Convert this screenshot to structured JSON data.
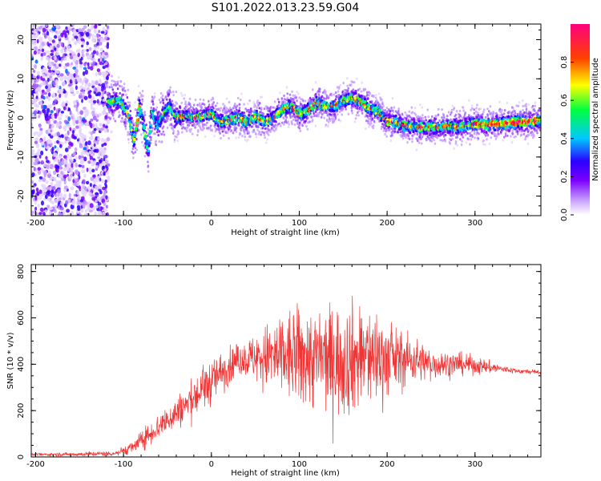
{
  "title": "S101.2022.013.23.59.G04",
  "chart_data": [
    {
      "type": "heatmap",
      "xlabel": "Height of straight line (km)",
      "ylabel": "Frequency (Hz)",
      "xlim": [
        -205,
        375
      ],
      "ylim": [
        -25,
        24
      ],
      "xticks": [
        -200,
        -100,
        0,
        100,
        200,
        300
      ],
      "yticks": [
        -20,
        -10,
        0,
        10,
        20
      ],
      "ridge": {
        "x": [
          -115,
          -105,
          -95,
          -88,
          -82,
          -78,
          -72,
          -68,
          -62,
          -55,
          -48,
          -40,
          -30,
          -20,
          -10,
          0,
          10,
          20,
          30,
          40,
          50,
          60,
          70,
          80,
          90,
          100,
          110,
          120,
          130,
          140,
          150,
          160,
          170,
          180,
          190,
          200,
          210,
          220,
          230,
          240,
          250,
          260,
          270,
          280,
          290,
          300,
          310,
          320,
          330,
          340,
          350,
          360,
          375
        ],
        "y": [
          4,
          4.5,
          1,
          -6,
          3,
          -1,
          -9,
          2,
          -2,
          1,
          3,
          0,
          0.5,
          0,
          0.5,
          1,
          -1,
          -0.5,
          0,
          -1,
          0.5,
          -1,
          0,
          2,
          3,
          1,
          2,
          4,
          3,
          3,
          4.5,
          5,
          4,
          2.5,
          1.5,
          -1,
          -1,
          -2,
          -2.2,
          -2.5,
          -2.3,
          -2.5,
          -2,
          -2.2,
          -2,
          -1.5,
          -1.8,
          -1.5,
          -1.5,
          -1.2,
          -1,
          -1,
          -0.5
        ]
      },
      "colorbar": {
        "label": "Normalized spectral amplitude",
        "range": [
          0,
          1
        ],
        "ticks": [
          0.0,
          0.2,
          0.4,
          0.6,
          0.8
        ],
        "colors": [
          "#ffffff",
          "#7b00ff",
          "#2c00ff",
          "#00c8ff",
          "#00ff40",
          "#ffff00",
          "#ff4000",
          "#ff0080"
        ]
      }
    },
    {
      "type": "line",
      "xlabel": "Height of straight line (km)",
      "ylabel": "SNR (10 * v/v)",
      "xlim": [
        -205,
        375
      ],
      "ylim": [
        0,
        830
      ],
      "xticks": [
        -200,
        -100,
        0,
        100,
        200,
        300
      ],
      "yticks": [
        0,
        200,
        400,
        600,
        800
      ],
      "color": "#ef3535",
      "envelope": {
        "x": [
          -205,
          -150,
          -110,
          -90,
          -70,
          -50,
          -30,
          -10,
          10,
          30,
          50,
          70,
          90,
          110,
          130,
          150,
          170,
          190,
          210,
          230,
          250,
          270,
          290,
          310,
          330,
          350,
          375
        ],
        "center": [
          10,
          12,
          15,
          40,
          100,
          160,
          220,
          290,
          360,
          420,
          430,
          430,
          430,
          430,
          420,
          420,
          430,
          430,
          420,
          420,
          400,
          400,
          400,
          390,
          380,
          370,
          365
        ],
        "spread": [
          5,
          8,
          10,
          25,
          45,
          55,
          70,
          90,
          80,
          60,
          90,
          150,
          190,
          200,
          200,
          220,
          210,
          180,
          120,
          90,
          60,
          50,
          40,
          30,
          15,
          10,
          8
        ]
      }
    }
  ]
}
